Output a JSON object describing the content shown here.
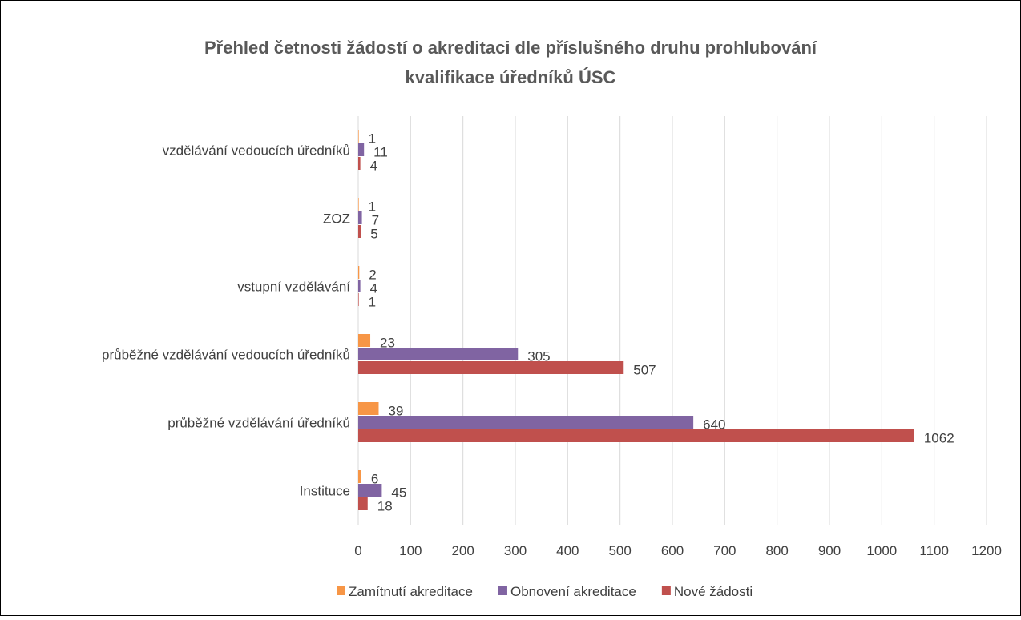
{
  "chart_data": {
    "type": "hbar",
    "title": [
      "Přehled četnosti žádostí o akreditaci dle příslušného druhu prohlubování",
      "kvalifikace úředníků ÚSC"
    ],
    "categories": [
      "Instituce",
      "průběžné vzdělávání úředníků",
      "průběžné vzdělávání vedoucích úředníků",
      "vstupní vzdělávání",
      "ZOZ",
      "vzdělávání vedoucích úředníků"
    ],
    "series": [
      {
        "name": "Zamítnutí akreditace",
        "color": "#f79646",
        "values": [
          6,
          39,
          23,
          2,
          1,
          1
        ]
      },
      {
        "name": "Obnovení akreditace",
        "color": "#8064a2",
        "values": [
          45,
          640,
          305,
          4,
          7,
          11
        ]
      },
      {
        "name": "Nové žádosti",
        "color": "#c0504d",
        "values": [
          18,
          1062,
          507,
          1,
          5,
          4
        ]
      }
    ],
    "xlim": [
      0,
      1200
    ],
    "xticks": [
      0,
      100,
      200,
      300,
      400,
      500,
      600,
      700,
      800,
      900,
      1000,
      1100,
      1200
    ],
    "grid": true,
    "legend": "bottom"
  }
}
